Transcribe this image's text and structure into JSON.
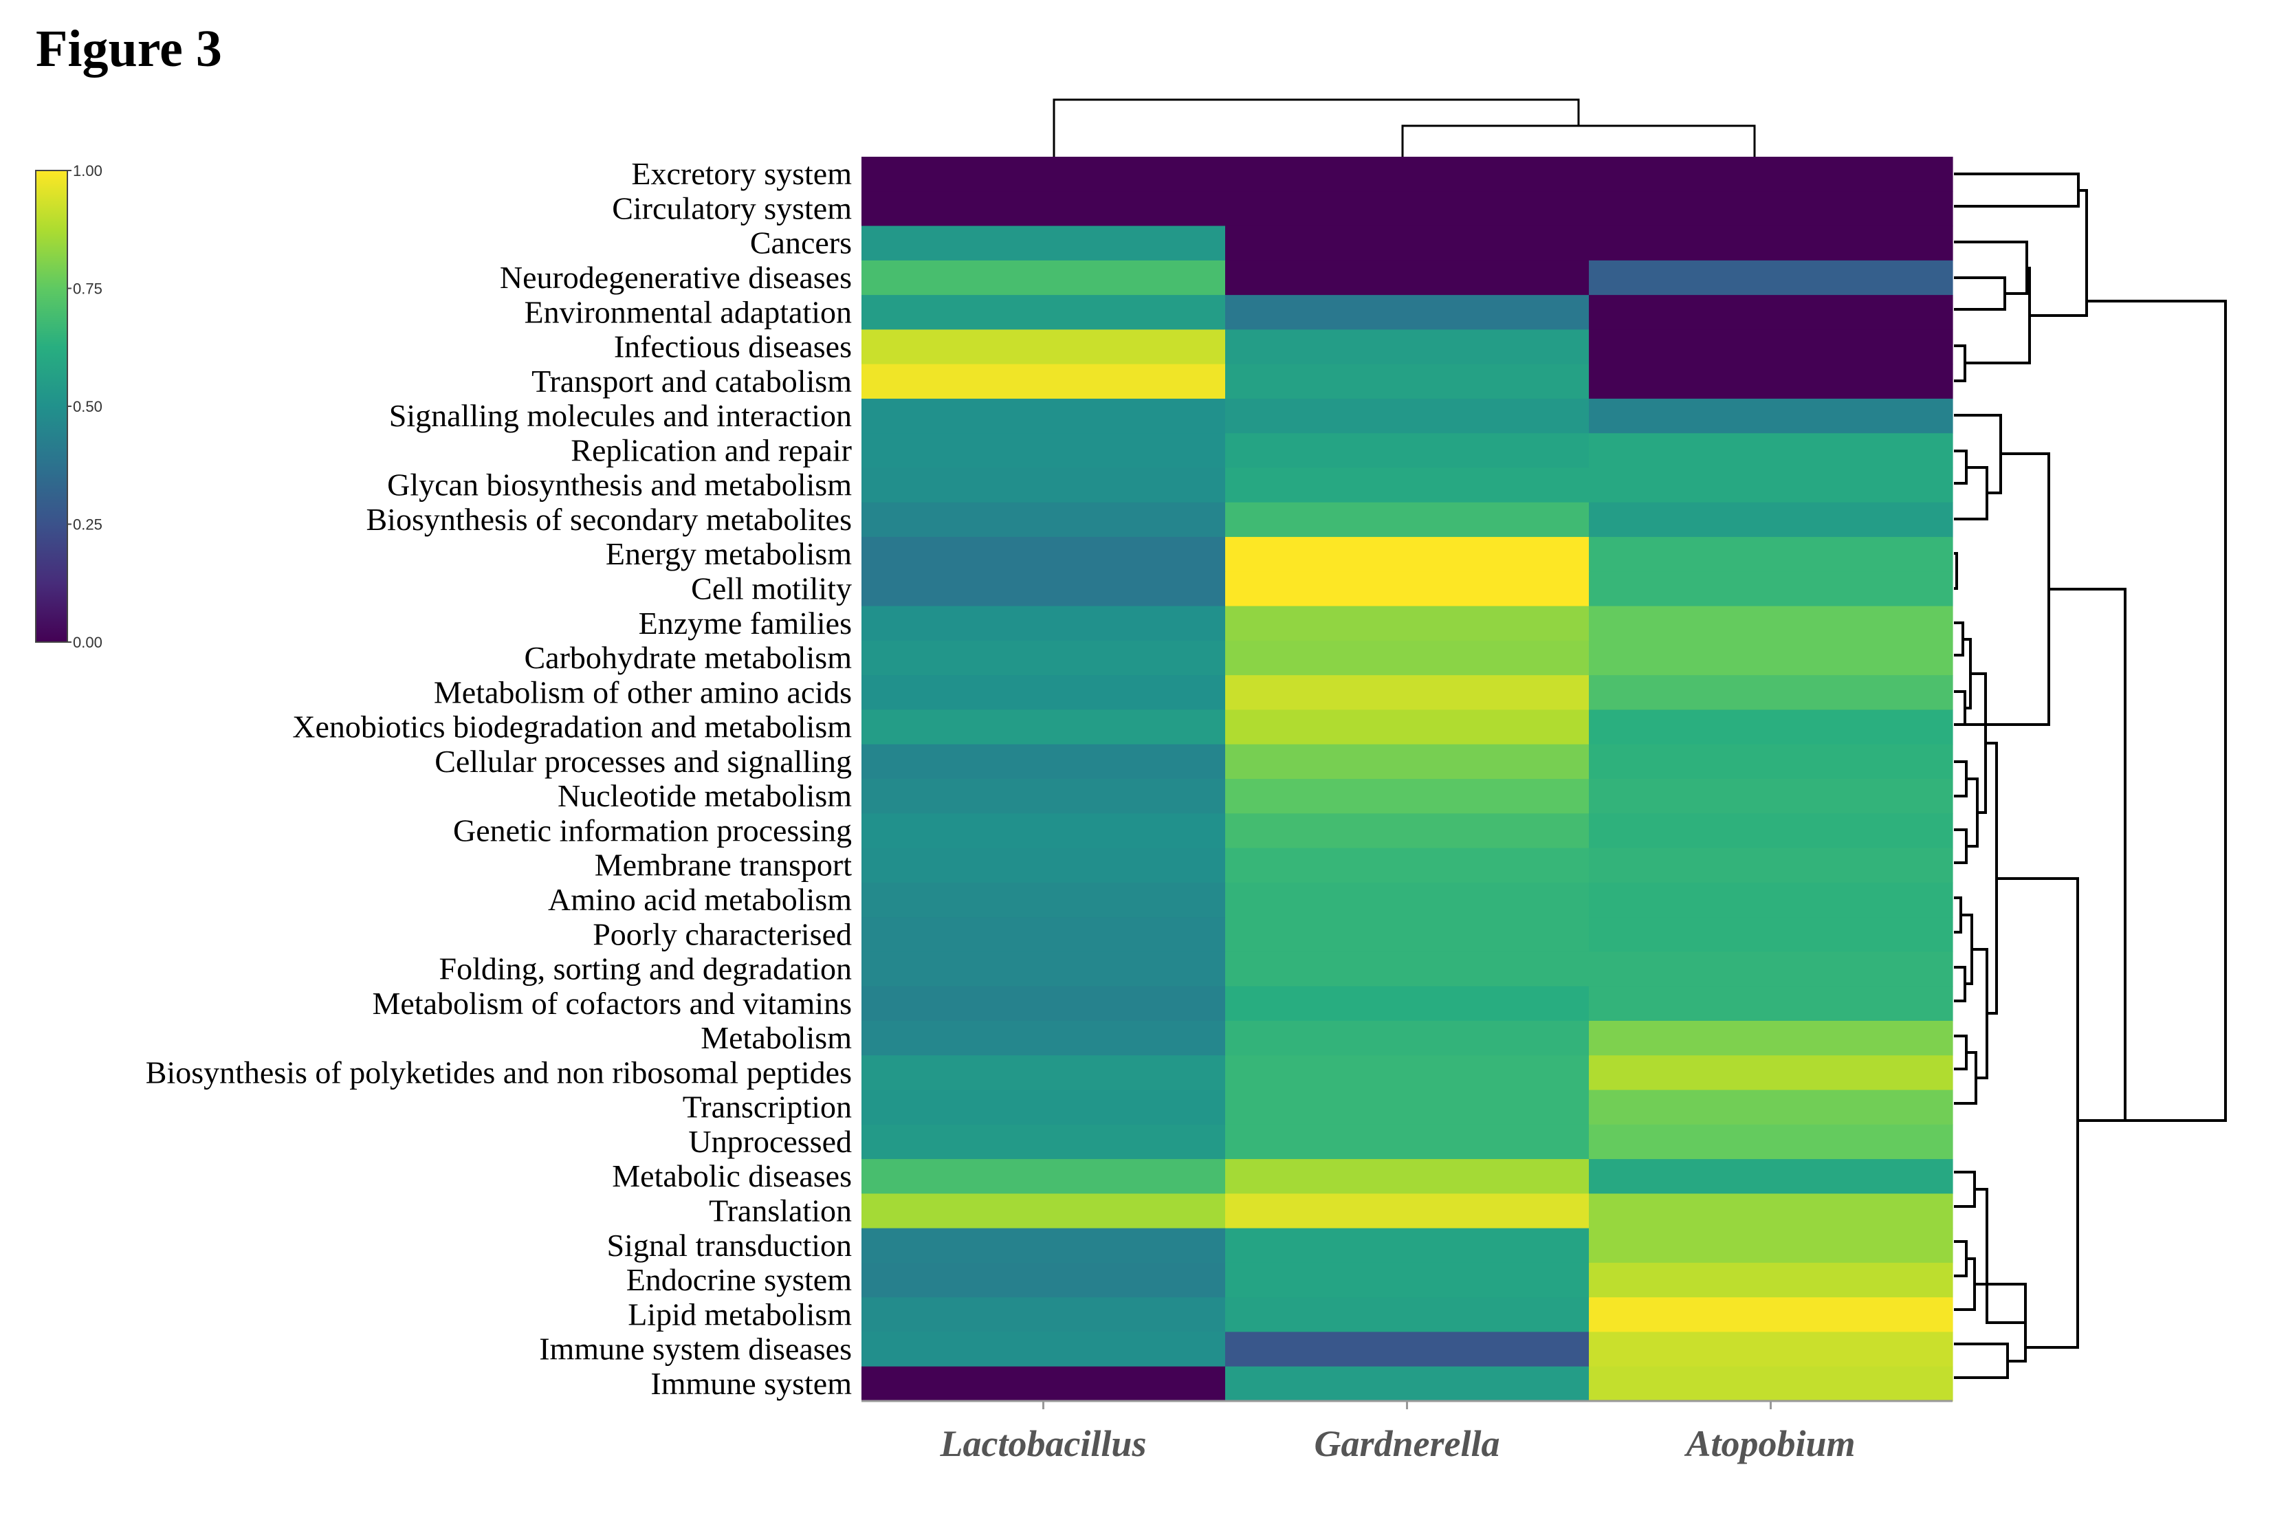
{
  "figure": {
    "title": "Figure 3"
  },
  "chart_data": {
    "type": "heatmap",
    "title": "Figure 3",
    "colormap": "viridis",
    "colorbar": {
      "min": 0.0,
      "max": 1.0,
      "ticks": [
        "1.00",
        "0.75",
        "0.50",
        "0.25",
        "0.00"
      ],
      "placement": "top-left"
    },
    "columns": [
      "Lactobacillus",
      "Gardnerella",
      "Atopobium"
    ],
    "rows": [
      "Excretory system",
      "Circulatory system",
      "Cancers",
      "Neurodegenerative diseases",
      "Environmental adaptation",
      "Infectious diseases",
      "Transport and catabolism",
      "Signalling molecules and interaction",
      "Replication and repair",
      "Glycan biosynthesis and metabolism",
      "Biosynthesis of secondary metabolites",
      "Energy metabolism",
      "Cell motility",
      "Enzyme families",
      "Carbohydrate metabolism",
      "Metabolism of other amino acids",
      "Xenobiotics biodegradation and metabolism",
      "Cellular processes and signalling",
      "Nucleotide metabolism",
      "Genetic information processing",
      "Membrane transport",
      "Amino acid metabolism",
      "Poorly characterised",
      "Folding, sorting and degradation",
      "Metabolism of cofactors and vitamins",
      "Metabolism",
      "Biosynthesis of polyketides and non ribosomal peptides",
      "Transcription",
      "Unprocessed",
      "Metabolic diseases",
      "Translation",
      "Signal transduction",
      "Endocrine system",
      "Lipid metabolism",
      "Immune system diseases",
      "Immune system"
    ],
    "values": [
      [
        0.0,
        0.0,
        0.0
      ],
      [
        0.0,
        0.0,
        0.0
      ],
      [
        0.53,
        0.0,
        0.0
      ],
      [
        0.7,
        0.0,
        0.3
      ],
      [
        0.55,
        0.4,
        0.0
      ],
      [
        0.92,
        0.55,
        0.0
      ],
      [
        0.98,
        0.57,
        0.0
      ],
      [
        0.5,
        0.53,
        0.44
      ],
      [
        0.5,
        0.58,
        0.6
      ],
      [
        0.49,
        0.6,
        0.6
      ],
      [
        0.45,
        0.68,
        0.55
      ],
      [
        0.4,
        1.0,
        0.66
      ],
      [
        0.4,
        1.0,
        0.66
      ],
      [
        0.5,
        0.83,
        0.76
      ],
      [
        0.52,
        0.82,
        0.76
      ],
      [
        0.5,
        0.92,
        0.71
      ],
      [
        0.55,
        0.88,
        0.63
      ],
      [
        0.45,
        0.79,
        0.64
      ],
      [
        0.47,
        0.74,
        0.65
      ],
      [
        0.5,
        0.69,
        0.64
      ],
      [
        0.49,
        0.66,
        0.65
      ],
      [
        0.47,
        0.65,
        0.64
      ],
      [
        0.46,
        0.65,
        0.64
      ],
      [
        0.46,
        0.65,
        0.65
      ],
      [
        0.44,
        0.62,
        0.65
      ],
      [
        0.46,
        0.65,
        0.8
      ],
      [
        0.53,
        0.66,
        0.88
      ],
      [
        0.52,
        0.66,
        0.78
      ],
      [
        0.54,
        0.66,
        0.76
      ],
      [
        0.7,
        0.86,
        0.6
      ],
      [
        0.86,
        0.95,
        0.84
      ],
      [
        0.44,
        0.58,
        0.84
      ],
      [
        0.43,
        0.58,
        0.9
      ],
      [
        0.48,
        0.57,
        0.99
      ],
      [
        0.49,
        0.27,
        0.92
      ],
      [
        0.0,
        0.55,
        0.91
      ]
    ]
  }
}
